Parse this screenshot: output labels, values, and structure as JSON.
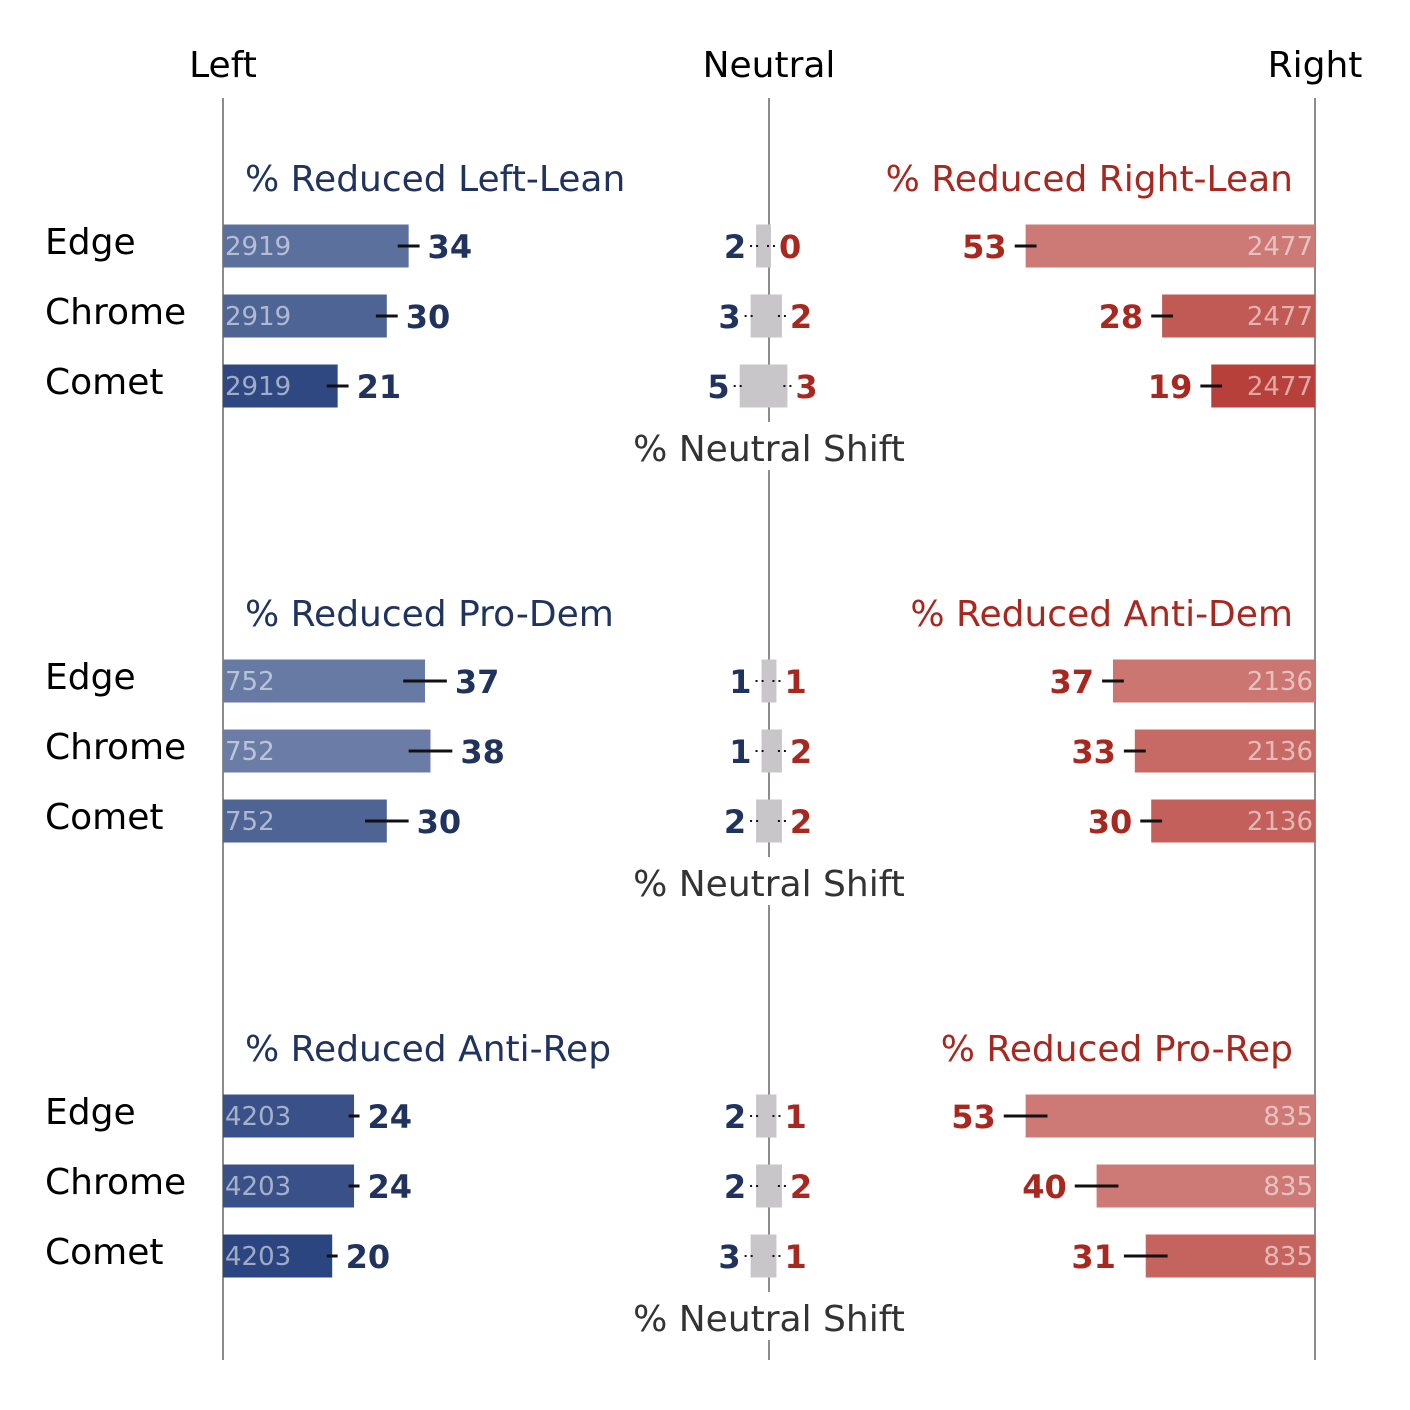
{
  "chart_data": {
    "type": "bar",
    "axis": {
      "left_label": "Left",
      "center_label": "Neutral",
      "right_label": "Right",
      "scale_max_percent": 100
    },
    "colors": {
      "left": "#2b4580",
      "right": "#b8403a",
      "left_text": "#1f335e",
      "right_text": "#a8281f",
      "neutral_bar": "#c8c6c8",
      "axis_line": "#8c8c8c"
    },
    "panels": [
      {
        "left_title": "% Reduced Left-Lean",
        "right_title": "% Reduced Right-Lean",
        "neutral_title": "% Neutral Shift",
        "rows": [
          {
            "browser": "Edge",
            "left": 34,
            "left_err": 2,
            "left_n": "2919",
            "neutral_left": 2,
            "neutral_right": 0,
            "right": 53,
            "right_err": 2,
            "right_n": "2477"
          },
          {
            "browser": "Chrome",
            "left": 30,
            "left_err": 2,
            "left_n": "2919",
            "neutral_left": 3,
            "neutral_right": 2,
            "right": 28,
            "right_err": 2,
            "right_n": "2477"
          },
          {
            "browser": "Comet",
            "left": 21,
            "left_err": 2,
            "left_n": "2919",
            "neutral_left": 5,
            "neutral_right": 3,
            "right": 19,
            "right_err": 2,
            "right_n": "2477"
          }
        ]
      },
      {
        "left_title": "% Reduced Pro-Dem",
        "right_title": "% Reduced Anti-Dem",
        "neutral_title": "% Neutral Shift",
        "rows": [
          {
            "browser": "Edge",
            "left": 37,
            "left_err": 4,
            "left_n": "752",
            "neutral_left": 1,
            "neutral_right": 1,
            "right": 37,
            "right_err": 2,
            "right_n": "2136"
          },
          {
            "browser": "Chrome",
            "left": 38,
            "left_err": 4,
            "left_n": "752",
            "neutral_left": 1,
            "neutral_right": 2,
            "right": 33,
            "right_err": 2,
            "right_n": "2136"
          },
          {
            "browser": "Comet",
            "left": 30,
            "left_err": 4,
            "left_n": "752",
            "neutral_left": 2,
            "neutral_right": 2,
            "right": 30,
            "right_err": 2,
            "right_n": "2136"
          }
        ]
      },
      {
        "left_title": "% Reduced Anti-Rep",
        "right_title": "% Reduced Pro-Rep",
        "neutral_title": "% Neutral Shift",
        "rows": [
          {
            "browser": "Edge",
            "left": 24,
            "left_err": 1,
            "left_n": "4203",
            "neutral_left": 2,
            "neutral_right": 1,
            "right": 53,
            "right_err": 4,
            "right_n": "835"
          },
          {
            "browser": "Chrome",
            "left": 24,
            "left_err": 1,
            "left_n": "4203",
            "neutral_left": 2,
            "neutral_right": 2,
            "right": 40,
            "right_err": 4,
            "right_n": "835"
          },
          {
            "browser": "Comet",
            "left": 20,
            "left_err": 1,
            "left_n": "4203",
            "neutral_left": 3,
            "neutral_right": 1,
            "right": 31,
            "right_err": 4,
            "right_n": "835"
          }
        ]
      }
    ]
  }
}
